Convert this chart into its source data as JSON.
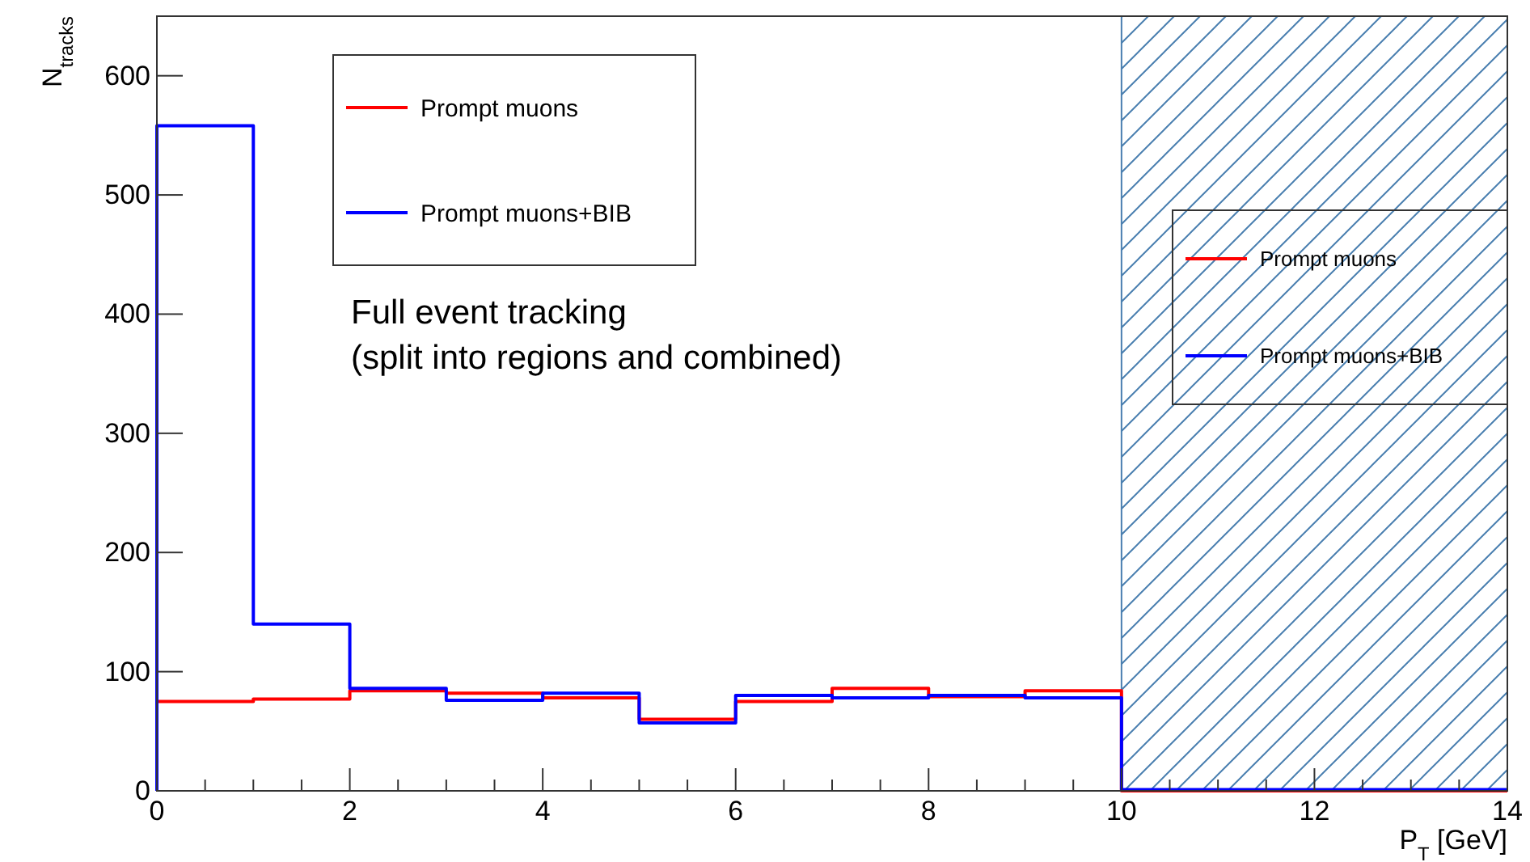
{
  "chart_data": {
    "type": "histogram",
    "xlabel": "P$_{T}$ [GeV]",
    "ylabel": "N$_{tracks}$",
    "bins": [
      0,
      1,
      2,
      3,
      4,
      5,
      6,
      7,
      8,
      9,
      10,
      11,
      12,
      13,
      14
    ],
    "series": [
      {
        "name": "Prompt muons",
        "color": "#ff0000",
        "values": [
          75,
          77,
          84,
          82,
          78,
          60,
          75,
          86,
          79,
          84,
          0,
          0,
          0,
          0
        ]
      },
      {
        "name": "Prompt muons+BIB",
        "color": "#0000ff",
        "values": [
          558,
          140,
          86,
          76,
          82,
          57,
          80,
          78,
          80,
          78,
          1,
          1,
          1,
          1
        ]
      }
    ],
    "xlim": [
      0,
      14
    ],
    "xticks": [
      0,
      2,
      4,
      6,
      8,
      10,
      12,
      14
    ],
    "ylim": [
      0,
      650
    ],
    "yticks": [
      0,
      100,
      200,
      300,
      400,
      500,
      600
    ],
    "bands": [
      {
        "axis": "x",
        "from": 10,
        "to": 14,
        "color": "#4a7fb0"
      }
    ],
    "annotations": [
      "Full event tracking\n(split into regions and combined)"
    ],
    "legend": "top left",
    "grid": false
  }
}
